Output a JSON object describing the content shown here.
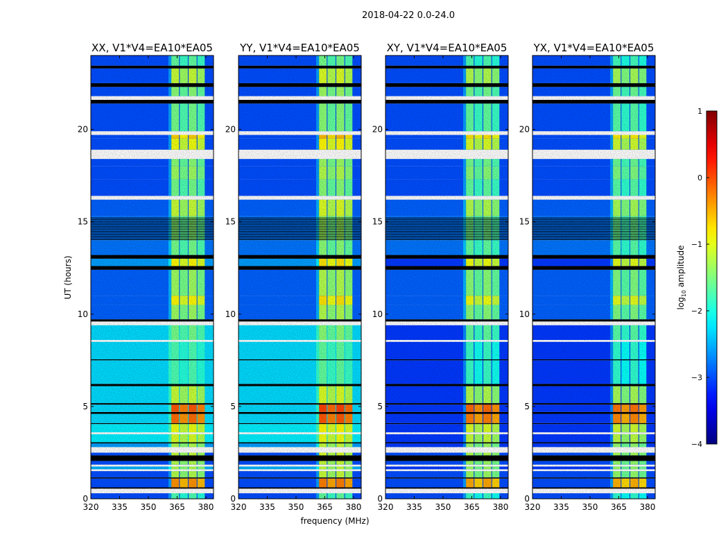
{
  "chart_data": {
    "type": "heatmap",
    "title": "2018-04-22 0.0-24.0",
    "xlabel": "frequency (MHz)",
    "ylabel": "UT (hours)",
    "xlim": [
      320,
      384
    ],
    "ylim": [
      0,
      24
    ],
    "xticks": [
      320,
      335,
      350,
      365,
      380
    ],
    "yticks": [
      0,
      5,
      10,
      15,
      20
    ],
    "colorbar": {
      "label": "log10 amplitude",
      "label_main": "log",
      "label_sub": "10",
      "label_rest": " amplitude",
      "range": [
        -4,
        1
      ],
      "ticks": [
        1,
        0,
        -1,
        -2,
        -3,
        -4
      ],
      "colormap": "jet"
    },
    "sub_bands_mhz": [
      [
        362,
        366
      ],
      [
        366.4,
        370.6
      ],
      [
        371,
        375.2
      ],
      [
        375.6,
        379.4
      ]
    ],
    "segment_fields": [
      "start_hour",
      "end_hour",
      "state",
      "background_log10",
      "band_log10"
    ],
    "segments": [
      [
        0.0,
        0.3,
        "data",
        -3.0,
        -1.8
      ],
      [
        0.3,
        0.55,
        "flagged",
        null,
        null
      ],
      [
        0.55,
        0.62,
        "zero",
        null,
        null
      ],
      [
        0.62,
        1.1,
        "data",
        -3.0,
        -0.4
      ],
      [
        1.1,
        1.16,
        "zero",
        null,
        null
      ],
      [
        1.16,
        1.5,
        "data",
        -3.0,
        -1.3
      ],
      [
        1.5,
        1.6,
        "flagged",
        null,
        null
      ],
      [
        1.6,
        1.75,
        "data",
        -2.5,
        -1.3
      ],
      [
        1.75,
        1.85,
        "flagged",
        null,
        null
      ],
      [
        1.85,
        2.05,
        "data",
        -3.0,
        -1.3
      ],
      [
        2.05,
        2.35,
        "zero",
        null,
        null
      ],
      [
        2.35,
        2.5,
        "data",
        -3.0,
        -1.2
      ],
      [
        2.5,
        2.8,
        "flagged",
        null,
        null
      ],
      [
        2.8,
        3.0,
        "data",
        -2.6,
        -1.3
      ],
      [
        3.0,
        3.06,
        "zero",
        null,
        null
      ],
      [
        3.06,
        3.5,
        "data",
        -2.2,
        -1.1
      ],
      [
        3.5,
        3.6,
        "flagged",
        null,
        null
      ],
      [
        3.6,
        4.05,
        "data",
        -2.2,
        -1.0
      ],
      [
        4.05,
        4.1,
        "zero",
        null,
        null
      ],
      [
        4.1,
        4.6,
        "data",
        -2.3,
        -0.2
      ],
      [
        4.6,
        4.7,
        "zero",
        null,
        null
      ],
      [
        4.7,
        5.1,
        "data",
        -2.3,
        -0.1
      ],
      [
        5.1,
        5.18,
        "zero",
        null,
        null
      ],
      [
        5.18,
        6.1,
        "data",
        -2.3,
        -1.2
      ],
      [
        6.1,
        6.22,
        "zero",
        null,
        null
      ],
      [
        6.22,
        7.5,
        "data",
        -2.3,
        -1.8
      ],
      [
        7.5,
        7.55,
        "zero",
        null,
        null
      ],
      [
        7.55,
        8.5,
        "data",
        -2.3,
        -1.8
      ],
      [
        8.5,
        8.6,
        "flagged",
        null,
        null
      ],
      [
        8.6,
        9.4,
        "data",
        -2.3,
        -1.6
      ],
      [
        9.4,
        9.6,
        "flagged",
        null,
        null
      ],
      [
        9.6,
        9.72,
        "zero",
        null,
        null
      ],
      [
        9.72,
        10.5,
        "data",
        -2.9,
        -1.4
      ],
      [
        10.5,
        11.0,
        "data",
        -2.9,
        -0.9
      ],
      [
        11.0,
        12.4,
        "data",
        -2.9,
        -1.4
      ],
      [
        12.4,
        12.6,
        "zero",
        null,
        null
      ],
      [
        12.6,
        13.0,
        "data",
        -2.6,
        -0.9
      ],
      [
        13.0,
        13.2,
        "zero",
        null,
        null
      ],
      [
        13.2,
        14.0,
        "data",
        -2.8,
        -1.6
      ],
      [
        14.0,
        15.3,
        "data",
        -2.8,
        -1.5
      ],
      [
        15.3,
        16.2,
        "data",
        -2.9,
        -1.2
      ],
      [
        16.2,
        16.4,
        "flagged",
        null,
        null
      ],
      [
        16.4,
        17.3,
        "data",
        -3.0,
        -1.6
      ],
      [
        17.3,
        18.0,
        "data",
        -3.0,
        -1.4
      ],
      [
        18.0,
        18.4,
        "data",
        -3.0,
        -1.5
      ],
      [
        18.4,
        18.9,
        "flagged",
        null,
        null
      ],
      [
        18.9,
        19.5,
        "data",
        -3.0,
        -1.0
      ],
      [
        19.5,
        19.7,
        "data",
        -3.0,
        -0.7
      ],
      [
        19.7,
        19.9,
        "flagged",
        null,
        null
      ],
      [
        19.9,
        21.4,
        "data",
        -3.0,
        -1.6
      ],
      [
        21.4,
        21.6,
        "zero",
        null,
        null
      ],
      [
        21.6,
        21.8,
        "flagged",
        null,
        null
      ],
      [
        21.8,
        22.3,
        "data",
        -3.0,
        -1.5
      ],
      [
        22.3,
        22.5,
        "zero",
        null,
        null
      ],
      [
        22.5,
        23.3,
        "data",
        -3.0,
        -1.2
      ],
      [
        23.3,
        23.45,
        "zero",
        null,
        null
      ],
      [
        23.45,
        24.0,
        "data",
        -3.0,
        -1.7
      ]
    ],
    "panels": [
      {
        "title": "XX, V1*V4=EA10*EA05",
        "polarization": "XX",
        "cross_pol": false,
        "band_offset": 0.0
      },
      {
        "title": "YY, V1*V4=EA10*EA05",
        "polarization": "YY",
        "cross_pol": false,
        "band_offset": 0.1
      },
      {
        "title": "XY, V1*V4=EA10*EA05",
        "polarization": "XY",
        "cross_pol": true,
        "band_offset": -0.1
      },
      {
        "title": "YX, V1*V4=EA10*EA05",
        "polarization": "YX",
        "cross_pol": true,
        "band_offset": -0.15
      }
    ],
    "cross_pol_background_log10": -3.1
  }
}
